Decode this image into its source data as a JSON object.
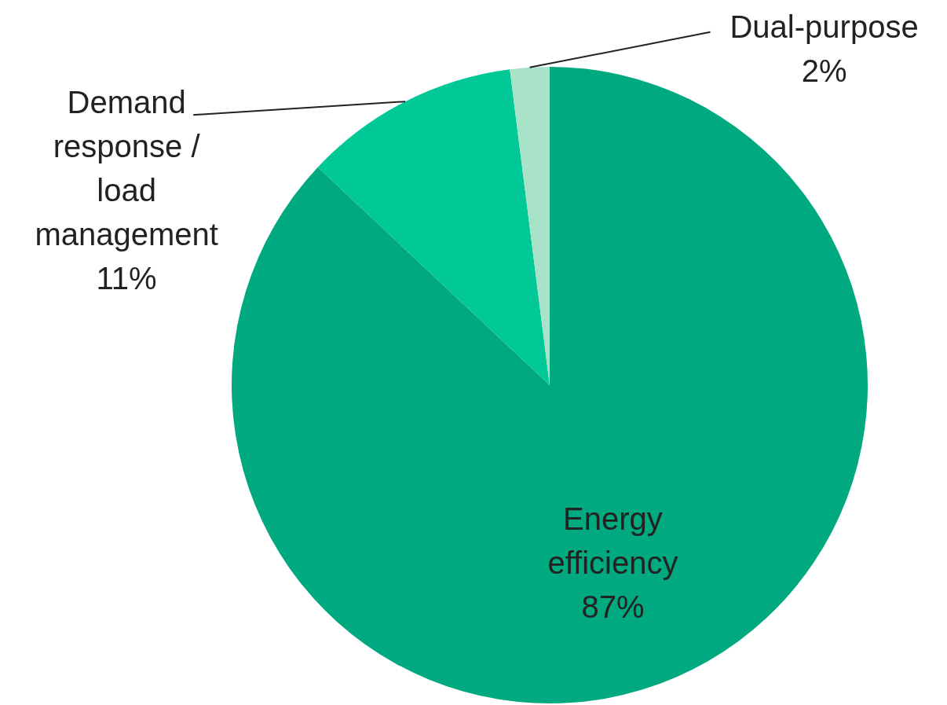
{
  "chart_data": {
    "type": "pie",
    "categories": [
      "Energy efficiency",
      "Demand response / load management",
      "Dual-purpose"
    ],
    "values": [
      87,
      11,
      2
    ],
    "colors": [
      "#00a97f",
      "#00c896",
      "#a8e2c8"
    ],
    "value_labels": [
      "87%",
      "11%",
      "2%"
    ]
  }
}
